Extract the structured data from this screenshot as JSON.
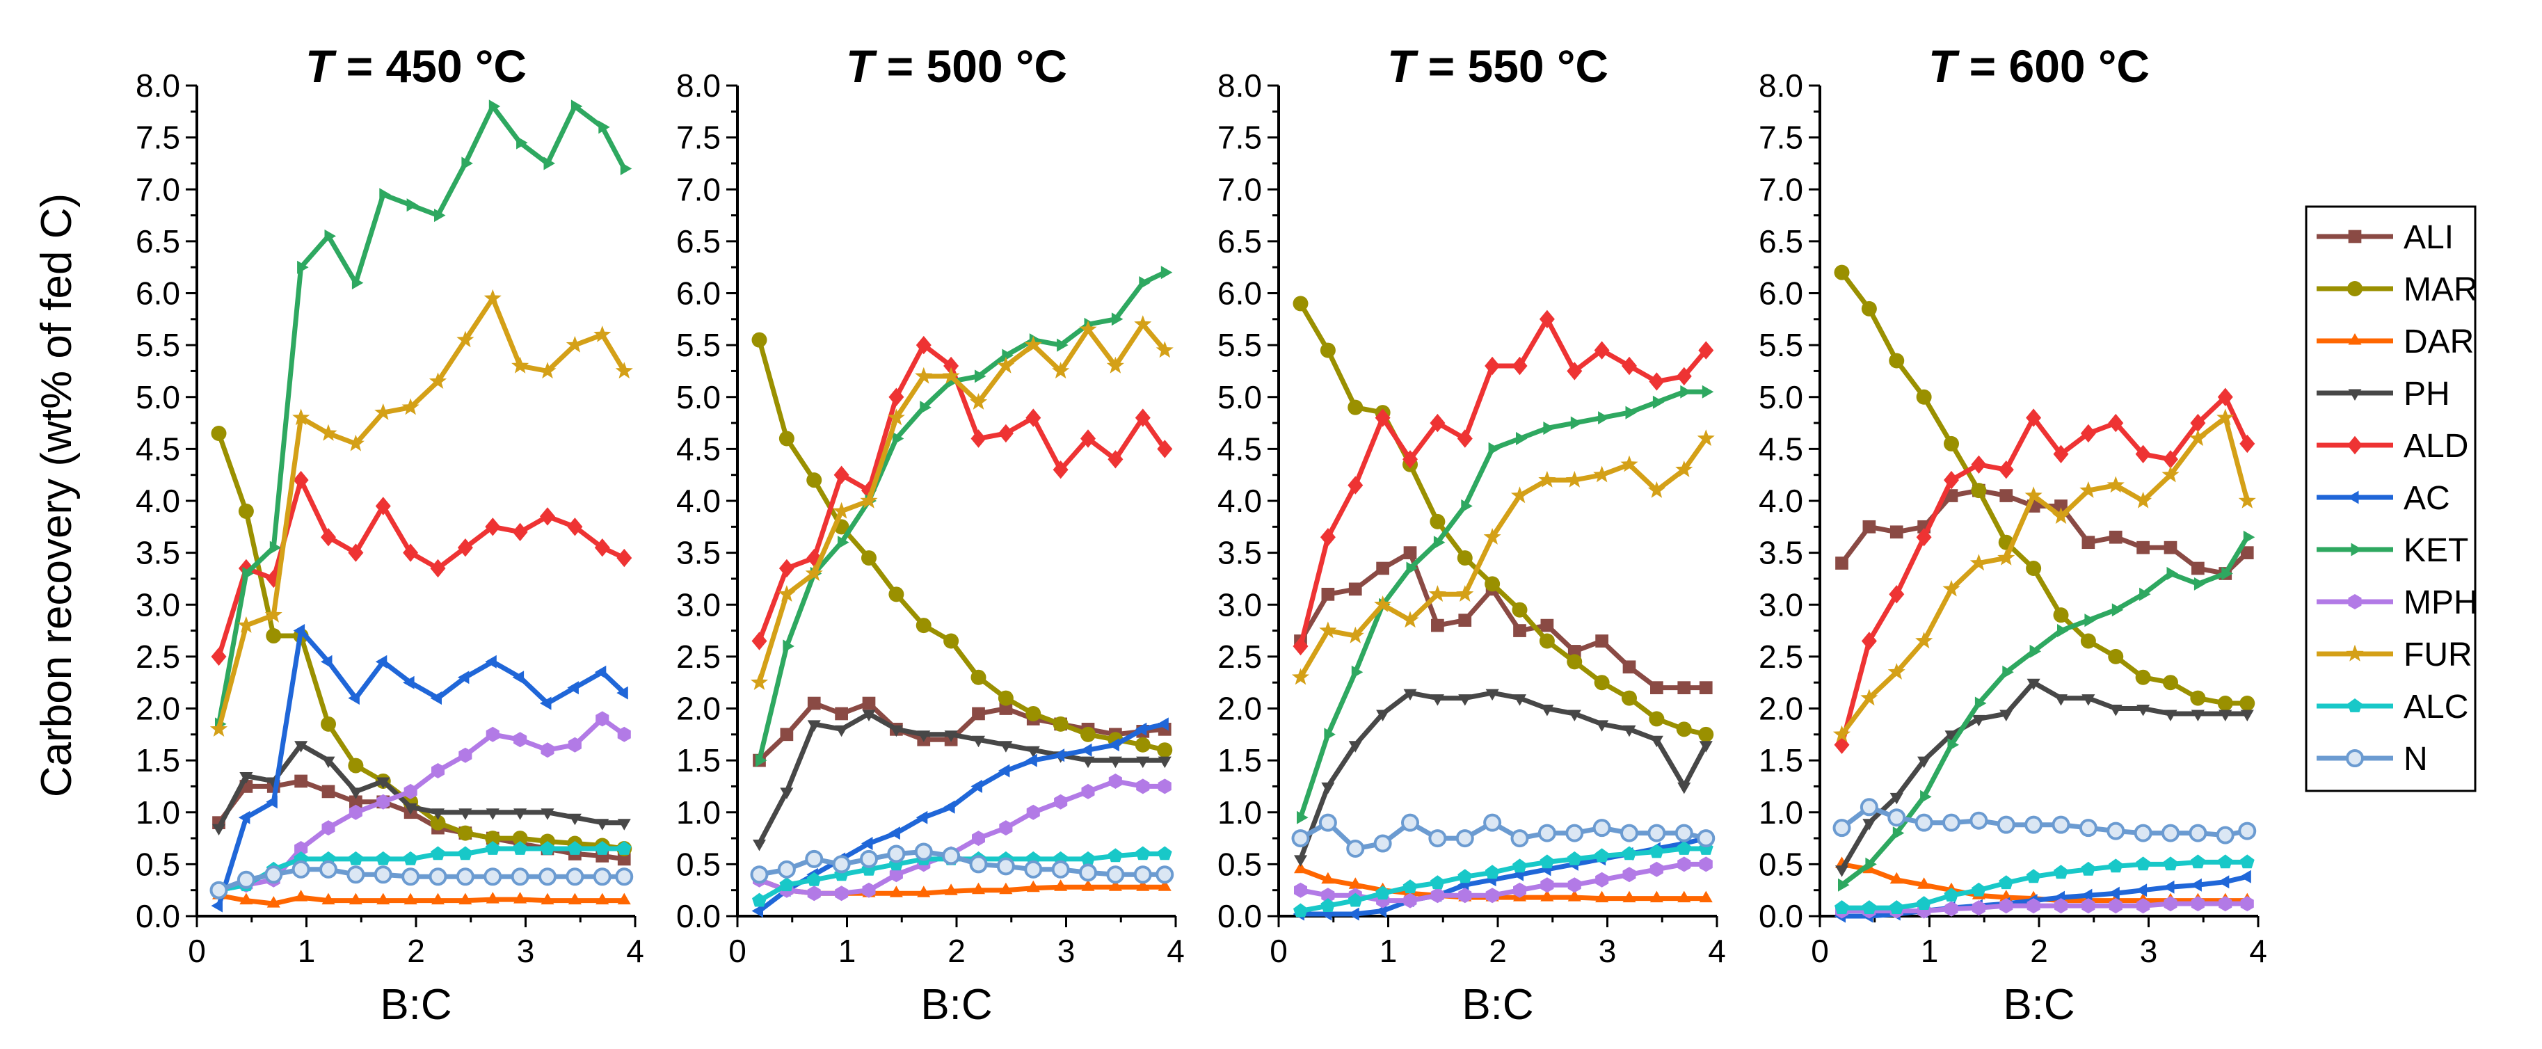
{
  "chart_data": {
    "type": "line",
    "ylabel": "Carbon recovery (wt% of fed C)",
    "xlabel": "B:C",
    "xlim": [
      0,
      4
    ],
    "ylim": [
      0,
      8
    ],
    "xticks": [
      "0",
      "1",
      "2",
      "3",
      "4"
    ],
    "yticks": [
      "0.0",
      "0.5",
      "1.0",
      "1.5",
      "2.0",
      "2.5",
      "3.0",
      "3.5",
      "4.0",
      "4.5",
      "5.0",
      "5.5",
      "6.0",
      "6.5",
      "7.0",
      "7.5",
      "8.0"
    ],
    "legend_position": "right",
    "x": [
      0.2,
      0.45,
      0.7,
      0.95,
      1.2,
      1.45,
      1.7,
      1.95,
      2.2,
      2.45,
      2.7,
      2.95,
      3.2,
      3.45,
      3.7,
      3.9
    ],
    "series_styles": [
      {
        "name": "ALI",
        "color": "#8a4a44",
        "marker": "square"
      },
      {
        "name": "MAR",
        "color": "#9a9000",
        "marker": "circle"
      },
      {
        "name": "DAR",
        "color": "#ff6600",
        "marker": "triangle-up"
      },
      {
        "name": "PH",
        "color": "#474747",
        "marker": "triangle-down"
      },
      {
        "name": "ALD",
        "color": "#ee3333",
        "marker": "diamond"
      },
      {
        "name": "AC",
        "color": "#1f66d8",
        "marker": "triangle-left"
      },
      {
        "name": "KET",
        "color": "#2ea860",
        "marker": "triangle-right"
      },
      {
        "name": "MPH",
        "color": "#b27ae6",
        "marker": "hexagon"
      },
      {
        "name": "FUR",
        "color": "#d4a017",
        "marker": "star"
      },
      {
        "name": "ALC",
        "color": "#18c8c8",
        "marker": "pentagon"
      },
      {
        "name": "N",
        "color": "#6b9bd1",
        "marker": "open-circle"
      }
    ],
    "panels": [
      {
        "title_var": "T",
        "title_rest": " = 450 °C",
        "series": [
          {
            "name": "ALI",
            "values": [
              0.9,
              1.25,
              1.25,
              1.3,
              1.2,
              1.1,
              1.1,
              1.0,
              0.85,
              0.8,
              0.75,
              0.7,
              0.65,
              0.6,
              0.58,
              0.55
            ]
          },
          {
            "name": "MAR",
            "values": [
              4.65,
              3.9,
              2.7,
              2.7,
              1.85,
              1.45,
              1.3,
              1.1,
              0.9,
              0.8,
              0.75,
              0.75,
              0.72,
              0.7,
              0.68,
              0.65
            ]
          },
          {
            "name": "DAR",
            "values": [
              0.2,
              0.15,
              0.12,
              0.18,
              0.15,
              0.15,
              0.15,
              0.15,
              0.15,
              0.15,
              0.16,
              0.16,
              0.15,
              0.15,
              0.15,
              0.15
            ]
          },
          {
            "name": "PH",
            "values": [
              0.85,
              1.35,
              1.3,
              1.65,
              1.5,
              1.2,
              1.3,
              1.05,
              1.0,
              1.0,
              1.0,
              1.0,
              1.0,
              0.95,
              0.9,
              0.9
            ]
          },
          {
            "name": "ALD",
            "values": [
              2.5,
              3.35,
              3.25,
              4.2,
              3.65,
              3.5,
              3.95,
              3.5,
              3.35,
              3.55,
              3.75,
              3.7,
              3.85,
              3.75,
              3.55,
              3.45
            ]
          },
          {
            "name": "AC",
            "values": [
              0.1,
              0.95,
              1.1,
              2.75,
              2.45,
              2.1,
              2.45,
              2.25,
              2.1,
              2.3,
              2.45,
              2.3,
              2.05,
              2.2,
              2.35,
              2.15
            ]
          },
          {
            "name": "KET",
            "values": [
              1.85,
              3.3,
              3.55,
              6.25,
              6.55,
              6.1,
              6.95,
              6.85,
              6.75,
              7.25,
              7.8,
              7.45,
              7.25,
              7.8,
              7.6,
              7.2
            ]
          },
          {
            "name": "MPH",
            "values": [
              0.25,
              0.3,
              0.35,
              0.65,
              0.85,
              1.0,
              1.1,
              1.2,
              1.4,
              1.55,
              1.75,
              1.7,
              1.6,
              1.65,
              1.9,
              1.75
            ]
          },
          {
            "name": "FUR",
            "values": [
              1.8,
              2.8,
              2.9,
              4.8,
              4.65,
              4.55,
              4.85,
              4.9,
              5.15,
              5.55,
              5.95,
              5.3,
              5.25,
              5.5,
              5.6,
              5.25
            ]
          },
          {
            "name": "ALC",
            "values": [
              0.25,
              0.3,
              0.45,
              0.55,
              0.55,
              0.55,
              0.55,
              0.55,
              0.6,
              0.6,
              0.65,
              0.65,
              0.65,
              0.65,
              0.65,
              0.65
            ]
          },
          {
            "name": "N",
            "values": [
              0.25,
              0.35,
              0.4,
              0.45,
              0.45,
              0.4,
              0.4,
              0.38,
              0.38,
              0.38,
              0.38,
              0.38,
              0.38,
              0.38,
              0.38,
              0.38
            ]
          }
        ]
      },
      {
        "title_var": "T",
        "title_rest": " = 500 °C",
        "series": [
          {
            "name": "ALI",
            "values": [
              1.5,
              1.75,
              2.05,
              1.95,
              2.05,
              1.8,
              1.7,
              1.7,
              1.95,
              2.0,
              1.9,
              1.85,
              1.8,
              1.75,
              1.78,
              1.8
            ]
          },
          {
            "name": "MAR",
            "values": [
              5.55,
              4.6,
              4.2,
              3.75,
              3.45,
              3.1,
              2.8,
              2.65,
              2.3,
              2.1,
              1.95,
              1.85,
              1.75,
              1.7,
              1.65,
              1.6
            ]
          },
          {
            "name": "DAR",
            "values": [
              0.35,
              0.25,
              0.22,
              0.22,
              0.22,
              0.22,
              0.22,
              0.24,
              0.25,
              0.25,
              0.27,
              0.28,
              0.28,
              0.28,
              0.28,
              0.28
            ]
          },
          {
            "name": "PH",
            "values": [
              0.7,
              1.2,
              1.85,
              1.8,
              1.95,
              1.8,
              1.75,
              1.75,
              1.7,
              1.65,
              1.6,
              1.55,
              1.5,
              1.5,
              1.5,
              1.5
            ]
          },
          {
            "name": "ALD",
            "values": [
              2.65,
              3.35,
              3.45,
              4.25,
              4.1,
              5.0,
              5.5,
              5.3,
              4.6,
              4.65,
              4.8,
              4.3,
              4.6,
              4.4,
              4.8,
              4.5
            ]
          },
          {
            "name": "AC",
            "values": [
              0.05,
              0.25,
              0.4,
              0.55,
              0.7,
              0.8,
              0.95,
              1.05,
              1.25,
              1.4,
              1.5,
              1.55,
              1.6,
              1.65,
              1.8,
              1.85
            ]
          },
          {
            "name": "KET",
            "values": [
              1.5,
              2.6,
              3.3,
              3.6,
              4.0,
              4.6,
              4.9,
              5.15,
              5.2,
              5.4,
              5.55,
              5.5,
              5.7,
              5.75,
              6.1,
              6.2
            ]
          },
          {
            "name": "MPH",
            "values": [
              0.35,
              0.25,
              0.22,
              0.22,
              0.25,
              0.4,
              0.5,
              0.6,
              0.75,
              0.85,
              1.0,
              1.1,
              1.2,
              1.3,
              1.25,
              1.25
            ]
          },
          {
            "name": "FUR",
            "values": [
              2.25,
              3.1,
              3.3,
              3.9,
              4.0,
              4.8,
              5.2,
              5.2,
              4.95,
              5.3,
              5.5,
              5.25,
              5.65,
              5.3,
              5.7,
              5.45
            ]
          },
          {
            "name": "ALC",
            "values": [
              0.15,
              0.3,
              0.35,
              0.4,
              0.45,
              0.5,
              0.55,
              0.55,
              0.55,
              0.55,
              0.55,
              0.55,
              0.55,
              0.58,
              0.6,
              0.6
            ]
          },
          {
            "name": "N",
            "values": [
              0.4,
              0.45,
              0.55,
              0.5,
              0.55,
              0.6,
              0.62,
              0.58,
              0.5,
              0.48,
              0.45,
              0.45,
              0.42,
              0.4,
              0.4,
              0.4
            ]
          }
        ]
      },
      {
        "title_var": "T",
        "title_rest": " = 550 °C",
        "series": [
          {
            "name": "ALI",
            "values": [
              2.65,
              3.1,
              3.15,
              3.35,
              3.5,
              2.8,
              2.85,
              3.15,
              2.75,
              2.8,
              2.55,
              2.65,
              2.4,
              2.2,
              2.2,
              2.2
            ]
          },
          {
            "name": "MAR",
            "values": [
              5.9,
              5.45,
              4.9,
              4.85,
              4.35,
              3.8,
              3.45,
              3.2,
              2.95,
              2.65,
              2.45,
              2.25,
              2.1,
              1.9,
              1.8,
              1.75
            ]
          },
          {
            "name": "DAR",
            "values": [
              0.45,
              0.35,
              0.3,
              0.25,
              0.22,
              0.2,
              0.18,
              0.18,
              0.18,
              0.18,
              0.18,
              0.17,
              0.17,
              0.17,
              0.17,
              0.17
            ]
          },
          {
            "name": "PH",
            "values": [
              0.55,
              1.25,
              1.65,
              1.95,
              2.15,
              2.1,
              2.1,
              2.15,
              2.1,
              2.0,
              1.95,
              1.85,
              1.8,
              1.7,
              1.25,
              1.65
            ]
          },
          {
            "name": "ALD",
            "values": [
              2.6,
              3.65,
              4.15,
              4.8,
              4.4,
              4.75,
              4.6,
              5.3,
              5.3,
              5.75,
              5.25,
              5.45,
              5.3,
              5.15,
              5.2,
              5.45
            ]
          },
          {
            "name": "AC",
            "values": [
              0.02,
              0.02,
              0.02,
              0.05,
              0.15,
              0.2,
              0.3,
              0.35,
              0.4,
              0.45,
              0.5,
              0.55,
              0.6,
              0.65,
              0.7,
              0.75
            ]
          },
          {
            "name": "KET",
            "values": [
              0.95,
              1.75,
              2.35,
              3.0,
              3.35,
              3.6,
              3.95,
              4.5,
              4.6,
              4.7,
              4.75,
              4.8,
              4.85,
              4.95,
              5.05,
              5.05
            ]
          },
          {
            "name": "MPH",
            "values": [
              0.25,
              0.2,
              0.2,
              0.15,
              0.15,
              0.2,
              0.2,
              0.2,
              0.25,
              0.3,
              0.3,
              0.35,
              0.4,
              0.45,
              0.5,
              0.5
            ]
          },
          {
            "name": "FUR",
            "values": [
              2.3,
              2.75,
              2.7,
              3.0,
              2.85,
              3.1,
              3.1,
              3.65,
              4.05,
              4.2,
              4.2,
              4.25,
              4.35,
              4.1,
              4.3,
              4.6
            ]
          },
          {
            "name": "ALC",
            "values": [
              0.05,
              0.1,
              0.15,
              0.22,
              0.28,
              0.32,
              0.38,
              0.42,
              0.48,
              0.52,
              0.55,
              0.58,
              0.6,
              0.62,
              0.65,
              0.65
            ]
          },
          {
            "name": "N",
            "values": [
              0.75,
              0.9,
              0.65,
              0.7,
              0.9,
              0.75,
              0.75,
              0.9,
              0.75,
              0.8,
              0.8,
              0.85,
              0.8,
              0.8,
              0.8,
              0.75
            ]
          }
        ]
      },
      {
        "title_var": "T",
        "title_rest": " = 600 °C",
        "series": [
          {
            "name": "ALI",
            "values": [
              3.4,
              3.75,
              3.7,
              3.75,
              4.05,
              4.1,
              4.05,
              3.95,
              3.95,
              3.6,
              3.65,
              3.55,
              3.55,
              3.35,
              3.3,
              3.5
            ]
          },
          {
            "name": "MAR",
            "values": [
              6.2,
              5.85,
              5.35,
              5.0,
              4.55,
              4.1,
              3.6,
              3.35,
              2.9,
              2.65,
              2.5,
              2.3,
              2.25,
              2.1,
              2.05,
              2.05
            ]
          },
          {
            "name": "DAR",
            "values": [
              0.5,
              0.45,
              0.35,
              0.3,
              0.25,
              0.2,
              0.18,
              0.17,
              0.15,
              0.15,
              0.15,
              0.15,
              0.15,
              0.15,
              0.15,
              0.15
            ]
          },
          {
            "name": "PH",
            "values": [
              0.45,
              0.9,
              1.15,
              1.5,
              1.75,
              1.9,
              1.95,
              2.25,
              2.1,
              2.1,
              2.0,
              2.0,
              1.95,
              1.95,
              1.95,
              1.95
            ]
          },
          {
            "name": "ALD",
            "values": [
              1.65,
              2.65,
              3.1,
              3.65,
              4.2,
              4.35,
              4.3,
              4.8,
              4.45,
              4.65,
              4.75,
              4.45,
              4.4,
              4.75,
              5.0,
              4.55
            ]
          },
          {
            "name": "AC",
            "values": [
              0.0,
              0.0,
              0.02,
              0.05,
              0.08,
              0.1,
              0.12,
              0.15,
              0.18,
              0.2,
              0.22,
              0.25,
              0.28,
              0.3,
              0.33,
              0.38
            ]
          },
          {
            "name": "KET",
            "values": [
              0.3,
              0.5,
              0.8,
              1.15,
              1.65,
              2.05,
              2.35,
              2.55,
              2.75,
              2.85,
              2.95,
              3.1,
              3.3,
              3.2,
              3.3,
              3.65
            ]
          },
          {
            "name": "MPH",
            "values": [
              0.05,
              0.05,
              0.05,
              0.05,
              0.07,
              0.08,
              0.1,
              0.1,
              0.1,
              0.1,
              0.1,
              0.1,
              0.12,
              0.12,
              0.12,
              0.12
            ]
          },
          {
            "name": "FUR",
            "values": [
              1.75,
              2.1,
              2.35,
              2.65,
              3.15,
              3.4,
              3.45,
              4.05,
              3.85,
              4.1,
              4.15,
              4.0,
              4.25,
              4.6,
              4.8,
              4.0
            ]
          },
          {
            "name": "ALC",
            "values": [
              0.08,
              0.08,
              0.08,
              0.12,
              0.2,
              0.25,
              0.32,
              0.38,
              0.42,
              0.45,
              0.48,
              0.5,
              0.5,
              0.52,
              0.52,
              0.52
            ]
          },
          {
            "name": "N",
            "values": [
              0.85,
              1.05,
              0.95,
              0.9,
              0.9,
              0.92,
              0.88,
              0.88,
              0.88,
              0.85,
              0.82,
              0.8,
              0.8,
              0.8,
              0.78,
              0.82
            ]
          }
        ]
      }
    ]
  }
}
